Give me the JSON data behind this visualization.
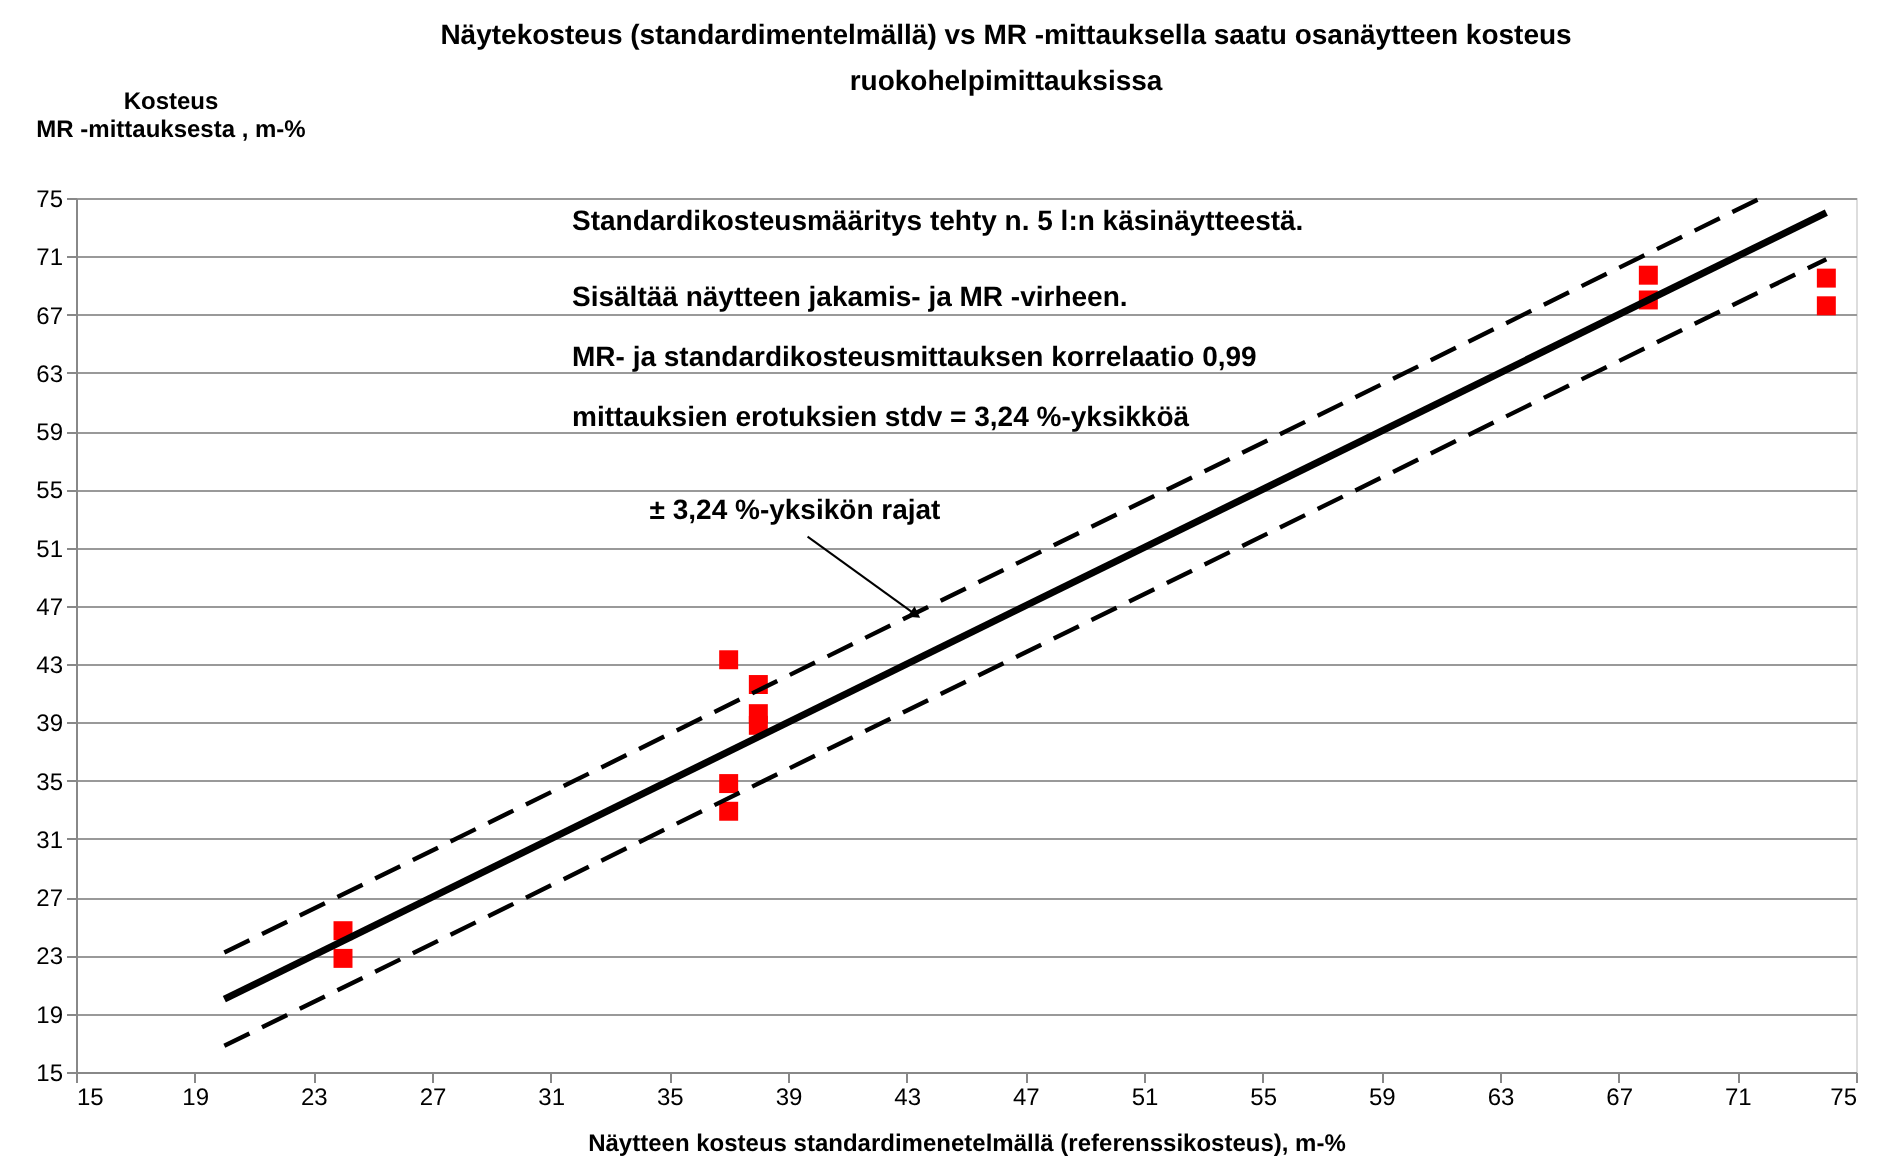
{
  "chart_data": {
    "type": "scatter",
    "title": [
      "Näytekosteus (standardimentelmällä) vs MR -mittauksella saatu osanäytteen kosteus",
      "ruokohelpimittauksissa"
    ],
    "xlabel": "Näytteen kosteus standardimenetelmällä (referenssikosteus), m-%",
    "ylabel": "Kosteus\nMR -mittauksesta , m-%",
    "xlim": [
      15,
      75
    ],
    "ylim": [
      15,
      75
    ],
    "xticks": [
      15,
      19,
      23,
      27,
      31,
      35,
      39,
      43,
      47,
      51,
      55,
      59,
      63,
      67,
      71,
      75
    ],
    "yticks": [
      15,
      19,
      23,
      27,
      31,
      35,
      39,
      43,
      47,
      51,
      55,
      59,
      63,
      67,
      71,
      75
    ],
    "grid": "y",
    "series": [
      {
        "marker": "square",
        "color": "#ff0000",
        "x": [
          24,
          24,
          37,
          37,
          37,
          38,
          38,
          38,
          68,
          68,
          74,
          74
        ],
        "values": [
          24.7,
          22.8,
          43.3,
          34.8,
          32.9,
          41.6,
          39.6,
          38.8,
          69.7,
          68.0,
          69.5,
          67.6
        ]
      },
      {
        "type": "line",
        "line_style": "solid",
        "color": "#000000",
        "x": [
          20,
          74
        ],
        "values": [
          20,
          74
        ]
      },
      {
        "type": "line",
        "line_style": "dashed",
        "color": "#000000",
        "x": [
          20,
          71.8
        ],
        "values": [
          23.2,
          75
        ]
      },
      {
        "type": "line",
        "line_style": "dashed",
        "color": "#000000",
        "x": [
          20,
          74
        ],
        "values": [
          16.8,
          70.8
        ]
      }
    ],
    "annotations": [
      "Standardikosteusmääritys tehty n. 5 l:n käsinäytteestä.",
      "Sisältää näytteen jakamis- ja MR -virheen.",
      "MR- ja standardikosteusmittauksen korrelaatio 0,99",
      "mittauksien erotuksien stdv = 3,24 %-yksikköä",
      {
        "text": "± 3,24 %-yksikön  rajat",
        "x": 43.3,
        "y": 46.4
      }
    ]
  }
}
